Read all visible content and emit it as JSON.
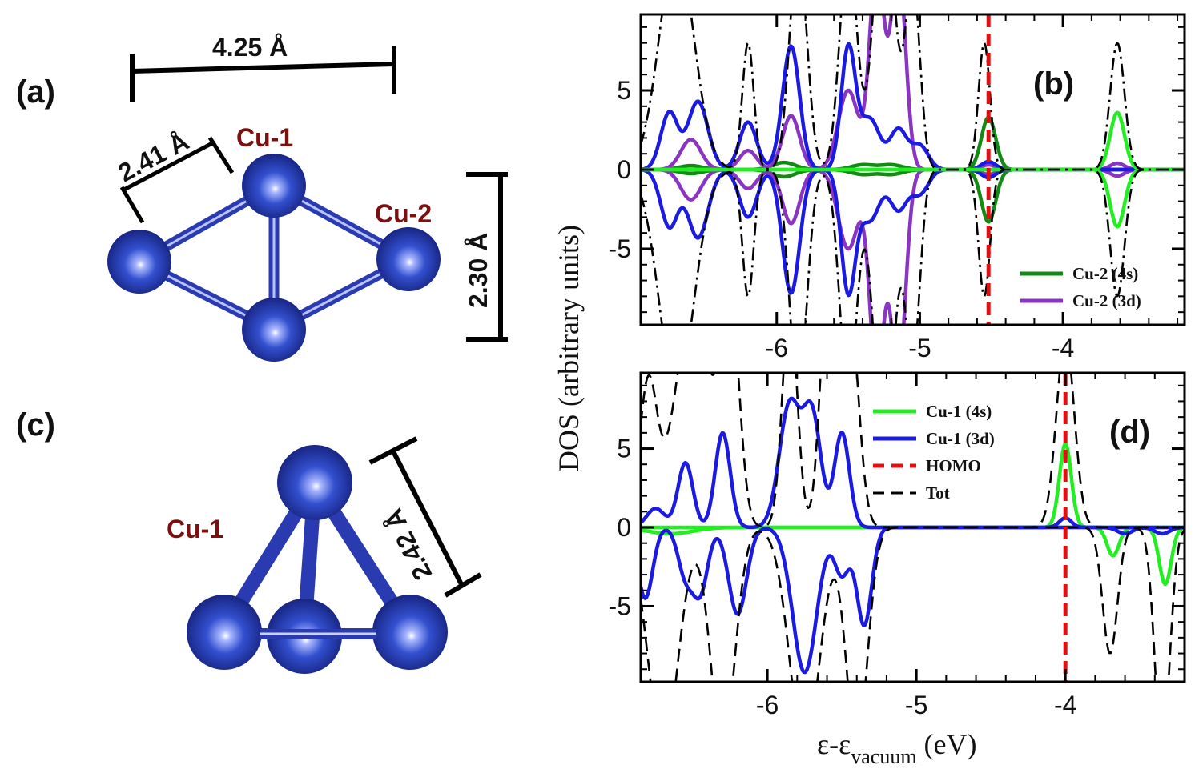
{
  "panels": {
    "a": {
      "label": "(a)",
      "dimensions": [
        "4.25 Å",
        "2.41 Å",
        "2.30 Å"
      ],
      "atom_labels": [
        "Cu-1",
        "Cu-2"
      ]
    },
    "c": {
      "label": "(c)",
      "dimensions": [
        "2.42 Å"
      ],
      "atom_labels": [
        "Cu-1"
      ]
    }
  },
  "axes": {
    "ylabel": "DOS (arbitrary units)",
    "xlabel_main": "ε-ε",
    "xlabel_sub": "vacuum",
    "xlabel_unit": " (eV)"
  },
  "colors": {
    "atom": "#2b3fb8",
    "cu_4s_dark": "#138a13",
    "cu_4s_light": "#22ee22",
    "cu_3d_purple": "#8a35c2",
    "cu_3d_blue": "#1a1ae0",
    "homo": "#e01010",
    "tot": "#000000"
  },
  "chart_data": [
    {
      "type": "line",
      "panel_label": "(b)",
      "xlim": [
        -6.95,
        -3.15
      ],
      "ylim": [
        -9.8,
        9.8
      ],
      "xticks": [
        "-6",
        "-5",
        "-4"
      ],
      "xtick_values": [
        -6,
        -5,
        -4
      ],
      "yticks": [
        "-5",
        "0",
        "5"
      ],
      "ytick_values": [
        -5,
        0,
        5
      ],
      "homo": -4.52,
      "series": [
        {
          "name": "Cu-2 (4s)",
          "color_key": "cu_4s_dark",
          "legend": true,
          "peaks": [
            [
              -4.52,
              3.3,
              0.05
            ],
            [
              -6.6,
              0.25,
              0.08
            ],
            [
              -5.95,
              0.45,
              0.08
            ],
            [
              -5.4,
              0.3,
              0.08
            ],
            [
              -5.2,
              0.3,
              0.08
            ]
          ]
        },
        {
          "name": "Cu-2 (3d)",
          "color_key": "cu_3d_purple",
          "legend": true,
          "peaks": [
            [
              -6.6,
              1.9,
              0.07
            ],
            [
              -6.2,
              1.2,
              0.06
            ],
            [
              -5.9,
              3.4,
              0.06
            ],
            [
              -5.5,
              5.0,
              0.07
            ],
            [
              -5.3,
              13.0,
              0.05
            ],
            [
              -5.15,
              13.0,
              0.05
            ],
            [
              -3.62,
              0.4,
              0.05
            ],
            [
              -4.52,
              0.3,
              0.05
            ]
          ]
        },
        {
          "name": "",
          "color_key": "cu_3d_blue",
          "legend": false,
          "peaks": [
            [
              -6.75,
              3.6,
              0.06
            ],
            [
              -6.55,
              4.3,
              0.07
            ],
            [
              -6.2,
              3.0,
              0.06
            ],
            [
              -5.9,
              7.8,
              0.06
            ],
            [
              -5.5,
              7.6,
              0.05
            ],
            [
              -5.35,
              3.2,
              0.07
            ],
            [
              -5.15,
              2.5,
              0.06
            ],
            [
              -5.0,
              1.5,
              0.06
            ],
            [
              -4.52,
              0.5,
              0.05
            ]
          ]
        },
        {
          "name": "",
          "color_key": "cu_4s_light",
          "legend": false,
          "peaks": [
            [
              -3.62,
              3.6,
              0.05
            ]
          ]
        },
        {
          "name": "",
          "color_key": "tot",
          "legend": false,
          "dash": "dashdot",
          "peaks": [
            [
              -6.7,
              14.0,
              0.12
            ],
            [
              -6.2,
              8.0,
              0.04
            ],
            [
              -5.85,
              14.0,
              0.06
            ],
            [
              -5.5,
              14.0,
              0.06
            ],
            [
              -5.25,
              18.0,
              0.07
            ],
            [
              -5.05,
              12.0,
              0.05
            ],
            [
              -4.55,
              8.0,
              0.04
            ],
            [
              -3.62,
              8.0,
              0.05
            ]
          ]
        }
      ]
    },
    {
      "type": "line",
      "panel_label": "(d)",
      "xlim": [
        -6.85,
        -3.2
      ],
      "ylim": [
        -9.8,
        9.8
      ],
      "xticks": [
        "-6",
        "-5",
        "-4"
      ],
      "xtick_values": [
        -6,
        -5,
        -4
      ],
      "yticks": [
        "-5",
        "0",
        "5"
      ],
      "ytick_values": [
        -5,
        0,
        5
      ],
      "homo": -4.0,
      "series": [
        {
          "name": "Cu-1 (4s)",
          "color_key": "cu_4s_light",
          "legend": true,
          "peaks": [
            [
              -4.0,
              5.3,
              0.04
            ]
          ],
          "neg_peaks": [
            [
              -3.68,
              1.8,
              0.04
            ],
            [
              -3.33,
              3.6,
              0.04
            ],
            [
              -6.65,
              0.4,
              0.15
            ]
          ]
        },
        {
          "name": "Cu-1 (3d)",
          "color_key": "cu_3d_blue",
          "legend": true,
          "peaks": [
            [
              -6.75,
              1.2,
              0.06
            ],
            [
              -6.55,
              4.1,
              0.05
            ],
            [
              -6.3,
              6.0,
              0.05
            ],
            [
              -5.85,
              7.8,
              0.07
            ],
            [
              -5.7,
              7.0,
              0.06
            ],
            [
              -5.5,
              6.0,
              0.05
            ],
            [
              -4.0,
              0.6,
              0.04
            ]
          ],
          "neg_peaks": [
            [
              -6.82,
              4.5,
              0.05
            ],
            [
              -6.55,
              3.0,
              0.05
            ],
            [
              -6.45,
              4.0,
              0.05
            ],
            [
              -6.2,
              5.5,
              0.06
            ],
            [
              -5.75,
              9.2,
              0.08
            ],
            [
              -5.5,
              3.0,
              0.05
            ],
            [
              -5.35,
              6.2,
              0.05
            ],
            [
              -3.6,
              0.4,
              0.05
            ],
            [
              -3.35,
              0.4,
              0.05
            ]
          ]
        },
        {
          "name": "HOMO",
          "color_key": "homo",
          "legend": true,
          "dash": "dash"
        },
        {
          "name": "Tot",
          "color_key": "tot",
          "legend": true,
          "dash": "dash",
          "peaks": [
            [
              -6.8,
              9.0,
              0.06
            ],
            [
              -6.5,
              14.0,
              0.12
            ],
            [
              -6.25,
              14.0,
              0.06
            ],
            [
              -5.85,
              14.0,
              0.05
            ],
            [
              -5.6,
              14.0,
              0.05
            ],
            [
              -5.45,
              14.0,
              0.06
            ],
            [
              -4.0,
              12.0,
              0.06
            ]
          ],
          "neg_peaks": [
            [
              -6.7,
              14.0,
              0.1
            ],
            [
              -6.3,
              14.0,
              0.08
            ],
            [
              -5.75,
              14.0,
              0.1
            ],
            [
              -5.4,
              14.0,
              0.07
            ],
            [
              -3.7,
              8.0,
              0.05
            ],
            [
              -3.35,
              14.0,
              0.05
            ]
          ]
        }
      ]
    }
  ]
}
